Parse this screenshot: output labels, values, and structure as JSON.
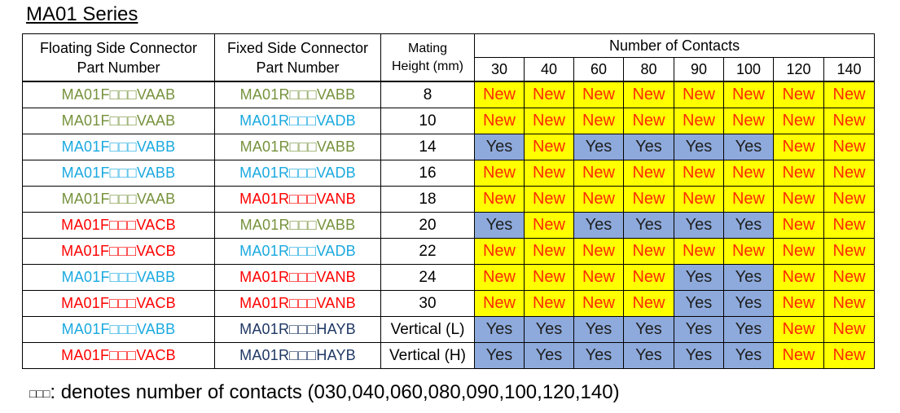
{
  "title": "MA01 Series",
  "headers": {
    "floating": [
      "Floating Side Connector",
      "Part Number"
    ],
    "fixed": [
      "Fixed Side Connector",
      "Part Number"
    ],
    "mating": [
      "Mating",
      "Height (mm)"
    ],
    "contacts_title": "Number of Contacts",
    "contacts": [
      "30",
      "40",
      "60",
      "80",
      "90",
      "100",
      "120",
      "140"
    ]
  },
  "colors": {
    "olive": "#76923c",
    "cyan": "#1aa9e0",
    "red": "#ff0000",
    "navy": "#1f3864",
    "yes_bg": "#8eaadc",
    "new_bg": "#ffff00",
    "new_text": "#ff2a00"
  },
  "rows": [
    {
      "floating": "MA01F□□□VAAB",
      "floating_color": "olive",
      "fixed": "MA01R□□□VABB",
      "fixed_color": "olive",
      "height": "8",
      "cells": [
        "New",
        "New",
        "New",
        "New",
        "New",
        "New",
        "New",
        "New"
      ]
    },
    {
      "floating": "MA01F□□□VAAB",
      "floating_color": "olive",
      "fixed": "MA01R□□□VADB",
      "fixed_color": "cyan",
      "height": "10",
      "cells": [
        "New",
        "New",
        "New",
        "New",
        "New",
        "New",
        "New",
        "New"
      ]
    },
    {
      "floating": "MA01F□□□VABB",
      "floating_color": "cyan",
      "fixed": "MA01R□□□VABB",
      "fixed_color": "olive",
      "height": "14",
      "cells": [
        "Yes",
        "New",
        "Yes",
        "Yes",
        "Yes",
        "Yes",
        "New",
        "New"
      ]
    },
    {
      "floating": "MA01F□□□VABB",
      "floating_color": "cyan",
      "fixed": "MA01R□□□VADB",
      "fixed_color": "cyan",
      "height": "16",
      "cells": [
        "New",
        "New",
        "New",
        "New",
        "New",
        "New",
        "New",
        "New"
      ]
    },
    {
      "floating": "MA01F□□□VAAB",
      "floating_color": "olive",
      "fixed": "MA01R□□□VANB",
      "fixed_color": "red",
      "height": "18",
      "cells": [
        "New",
        "New",
        "New",
        "New",
        "New",
        "New",
        "New",
        "New"
      ]
    },
    {
      "floating": "MA01F□□□VACB",
      "floating_color": "red",
      "fixed": "MA01R□□□VABB",
      "fixed_color": "olive",
      "height": "20",
      "cells": [
        "Yes",
        "New",
        "Yes",
        "Yes",
        "Yes",
        "Yes",
        "New",
        "New"
      ]
    },
    {
      "floating": "MA01F□□□VACB",
      "floating_color": "red",
      "fixed": "MA01R□□□VADB",
      "fixed_color": "cyan",
      "height": "22",
      "cells": [
        "New",
        "New",
        "New",
        "New",
        "New",
        "New",
        "New",
        "New"
      ]
    },
    {
      "floating": "MA01F□□□VABB",
      "floating_color": "cyan",
      "fixed": "MA01R□□□VANB",
      "fixed_color": "red",
      "height": "24",
      "cells": [
        "New",
        "New",
        "New",
        "New",
        "Yes",
        "Yes",
        "New",
        "New"
      ]
    },
    {
      "floating": "MA01F□□□VACB",
      "floating_color": "red",
      "fixed": "MA01R□□□VANB",
      "fixed_color": "red",
      "height": "30",
      "cells": [
        "New",
        "New",
        "New",
        "New",
        "Yes",
        "Yes",
        "New",
        "New"
      ]
    },
    {
      "floating": "MA01F□□□VABB",
      "floating_color": "cyan",
      "fixed": "MA01R□□□HAYB",
      "fixed_color": "navy",
      "height": "Vertical (L)",
      "cells": [
        "Yes",
        "Yes",
        "Yes",
        "Yes",
        "Yes",
        "Yes",
        "New",
        "New"
      ]
    },
    {
      "floating": "MA01F□□□VACB",
      "floating_color": "red",
      "fixed": "MA01R□□□HAYB",
      "fixed_color": "navy",
      "height": "Vertical (H)",
      "cells": [
        "Yes",
        "Yes",
        "Yes",
        "Yes",
        "Yes",
        "Yes",
        "New",
        "New"
      ]
    }
  ],
  "footnote": {
    "boxes": "□□□",
    "text": ": denotes number of contacts (030,040,060,080,090,100,120,140)"
  }
}
